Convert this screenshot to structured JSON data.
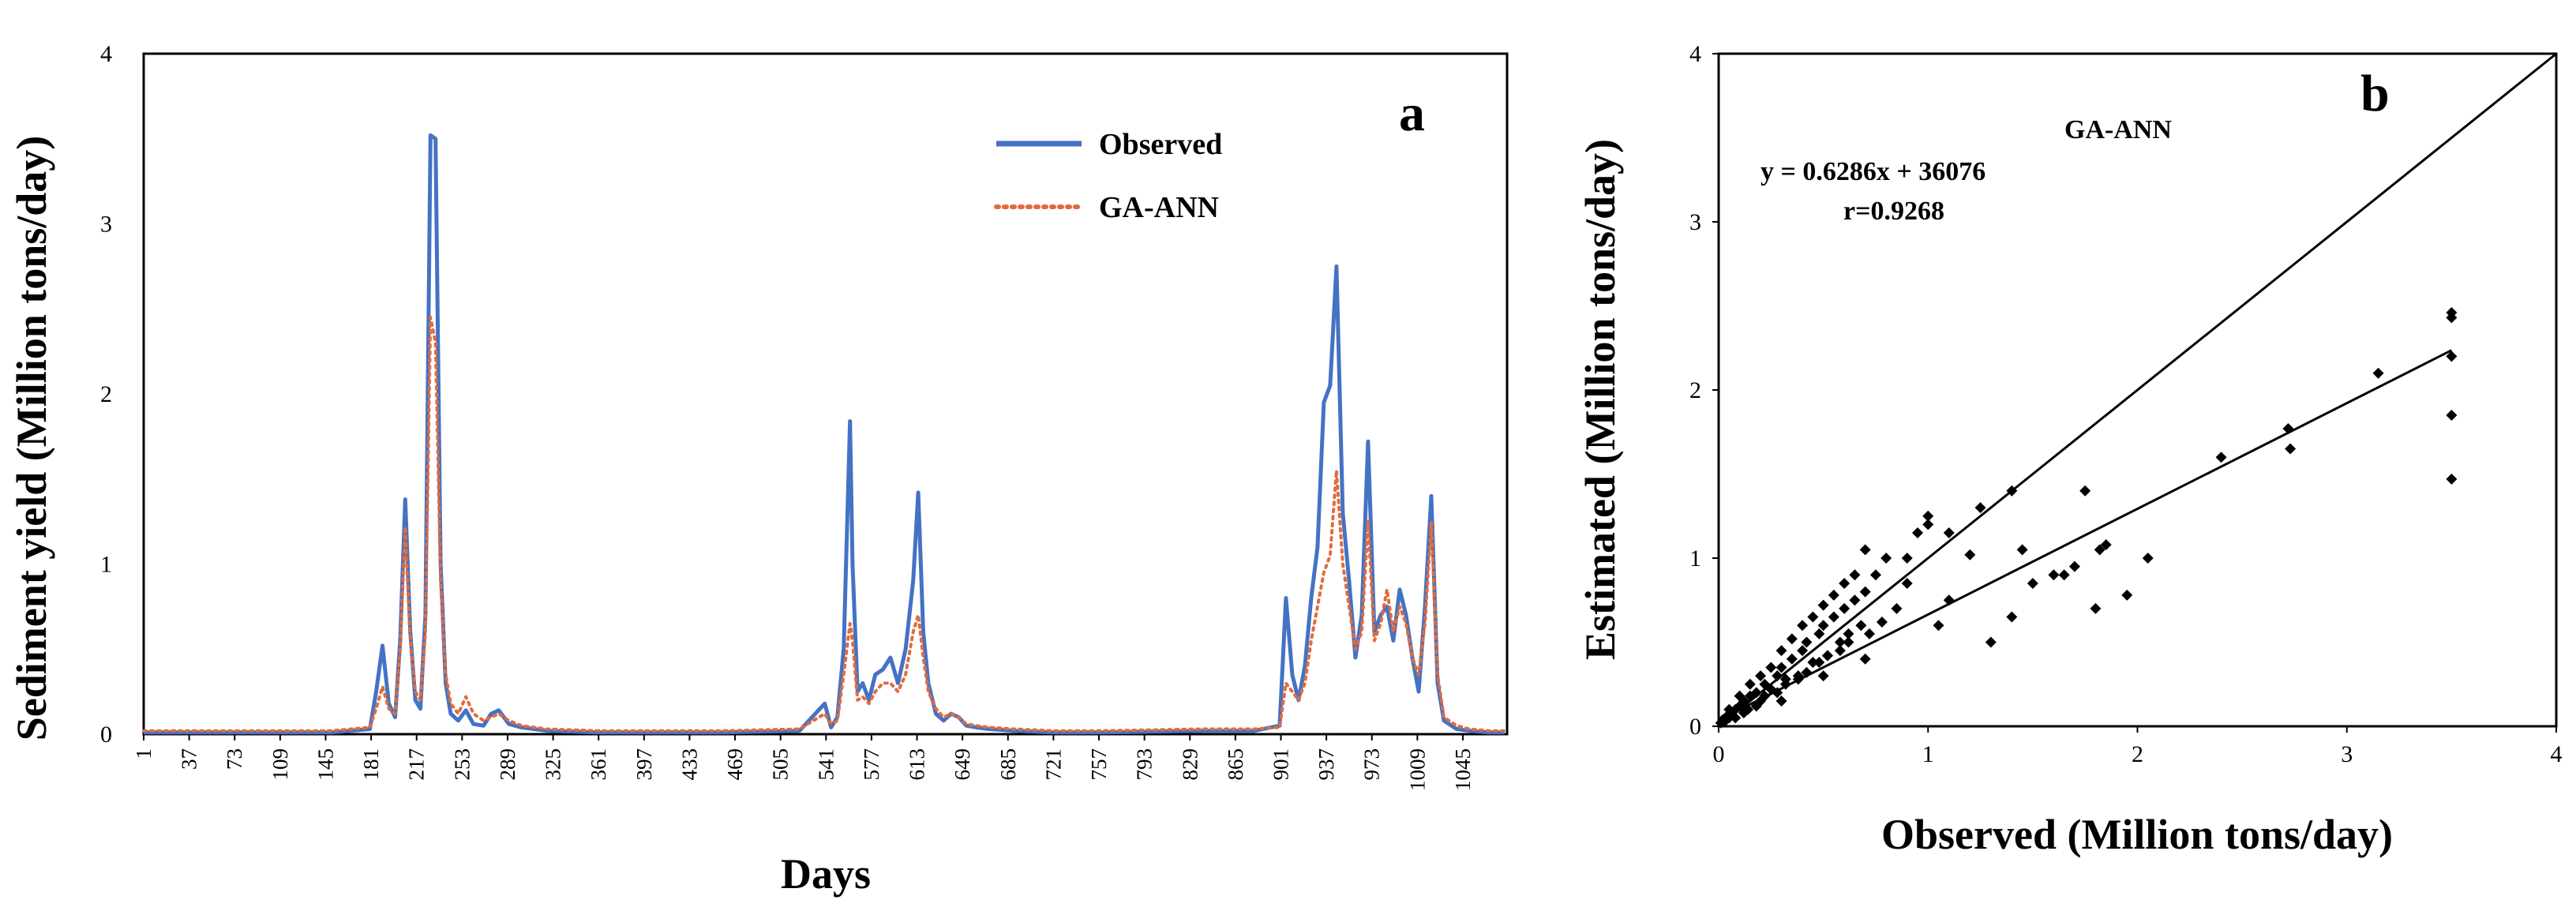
{
  "chart_data": [
    {
      "type": "line",
      "panel": "a",
      "xlabel": "Days",
      "ylabel": "Sediment yield (Million tons/day)",
      "ylim": [
        0,
        4
      ],
      "xlim": [
        1,
        1080
      ],
      "yticks": [
        0,
        1,
        2,
        3,
        4
      ],
      "xticks": [
        1,
        37,
        73,
        109,
        145,
        181,
        217,
        253,
        289,
        325,
        361,
        397,
        433,
        469,
        505,
        541,
        577,
        613,
        649,
        685,
        721,
        757,
        793,
        829,
        865,
        901,
        937,
        973,
        1009,
        1045
      ],
      "legend": [
        "Observed",
        "GA-ANN"
      ],
      "series": [
        {
          "name": "Observed",
          "color": "#4472c4",
          "style": "solid",
          "x": [
            1,
            150,
            180,
            185,
            190,
            195,
            200,
            204,
            208,
            212,
            216,
            220,
            224,
            228,
            232,
            236,
            240,
            244,
            250,
            256,
            262,
            270,
            276,
            282,
            290,
            300,
            320,
            360,
            460,
            520,
            540,
            545,
            550,
            555,
            560,
            562,
            566,
            570,
            575,
            580,
            586,
            592,
            598,
            604,
            610,
            614,
            618,
            622,
            628,
            634,
            640,
            646,
            652,
            660,
            670,
            690,
            720,
            760,
            840,
            880,
            900,
            905,
            910,
            915,
            920,
            925,
            930,
            935,
            940,
            945,
            950,
            955,
            960,
            965,
            970,
            975,
            980,
            985,
            990,
            995,
            1000,
            1005,
            1010,
            1015,
            1020,
            1025,
            1030,
            1040,
            1050,
            1065,
            1078
          ],
          "y": [
            0.01,
            0.01,
            0.03,
            0.25,
            0.52,
            0.18,
            0.1,
            0.55,
            1.38,
            0.6,
            0.2,
            0.15,
            0.7,
            3.52,
            3.5,
            1.0,
            0.3,
            0.12,
            0.08,
            0.14,
            0.06,
            0.05,
            0.12,
            0.14,
            0.06,
            0.04,
            0.02,
            0.01,
            0.01,
            0.02,
            0.18,
            0.04,
            0.1,
            0.5,
            1.84,
            1.0,
            0.25,
            0.3,
            0.2,
            0.35,
            0.38,
            0.45,
            0.3,
            0.5,
            0.9,
            1.42,
            0.6,
            0.3,
            0.12,
            0.08,
            0.12,
            0.1,
            0.05,
            0.04,
            0.03,
            0.02,
            0.01,
            0.01,
            0.02,
            0.02,
            0.05,
            0.8,
            0.35,
            0.2,
            0.4,
            0.8,
            1.1,
            1.95,
            2.05,
            2.75,
            1.3,
            0.9,
            0.45,
            0.7,
            1.72,
            0.6,
            0.7,
            0.75,
            0.55,
            0.85,
            0.7,
            0.45,
            0.25,
            0.75,
            1.4,
            0.3,
            0.08,
            0.03,
            0.02,
            0.01,
            0.01
          ]
        },
        {
          "name": "GA-ANN",
          "color": "#e26b3c",
          "style": "dotted",
          "x": [
            1,
            150,
            180,
            185,
            190,
            195,
            200,
            204,
            208,
            212,
            216,
            220,
            224,
            228,
            232,
            236,
            240,
            244,
            250,
            256,
            262,
            270,
            276,
            282,
            290,
            300,
            320,
            360,
            460,
            520,
            540,
            545,
            550,
            555,
            560,
            562,
            566,
            570,
            575,
            580,
            586,
            592,
            598,
            604,
            610,
            614,
            618,
            622,
            628,
            634,
            640,
            646,
            652,
            660,
            670,
            690,
            720,
            760,
            840,
            880,
            900,
            905,
            910,
            915,
            920,
            925,
            930,
            935,
            940,
            945,
            950,
            955,
            960,
            965,
            970,
            975,
            980,
            985,
            990,
            995,
            1000,
            1005,
            1010,
            1015,
            1020,
            1025,
            1030,
            1040,
            1050,
            1065,
            1078
          ],
          "y": [
            0.02,
            0.02,
            0.04,
            0.15,
            0.28,
            0.15,
            0.12,
            0.5,
            1.22,
            0.55,
            0.25,
            0.2,
            0.6,
            2.45,
            2.3,
            0.9,
            0.35,
            0.18,
            0.12,
            0.22,
            0.12,
            0.08,
            0.1,
            0.12,
            0.08,
            0.05,
            0.03,
            0.02,
            0.02,
            0.03,
            0.12,
            0.06,
            0.08,
            0.35,
            0.65,
            0.55,
            0.2,
            0.22,
            0.18,
            0.25,
            0.3,
            0.3,
            0.25,
            0.35,
            0.6,
            0.7,
            0.45,
            0.25,
            0.15,
            0.1,
            0.12,
            0.1,
            0.06,
            0.05,
            0.04,
            0.03,
            0.02,
            0.02,
            0.03,
            0.03,
            0.04,
            0.3,
            0.25,
            0.2,
            0.3,
            0.55,
            0.75,
            0.95,
            1.05,
            1.55,
            1.0,
            0.75,
            0.5,
            0.6,
            1.25,
            0.55,
            0.65,
            0.85,
            0.6,
            0.75,
            0.65,
            0.45,
            0.35,
            0.65,
            1.25,
            0.35,
            0.1,
            0.05,
            0.03,
            0.02,
            0.02
          ]
        }
      ]
    },
    {
      "type": "scatter",
      "panel": "b",
      "xlabel": "Observed (Million tons/day)",
      "ylabel": "Estimated (Million tons/day)",
      "xlim": [
        0,
        4
      ],
      "ylim": [
        0,
        4
      ],
      "xticks": [
        0,
        1,
        2,
        3,
        4
      ],
      "yticks": [
        0,
        1,
        2,
        3,
        4
      ],
      "model_label": "GA-ANN",
      "equation": "y = 0.6286x + 36076",
      "r_label": "r=0.9268",
      "fit_line": {
        "slope": 0.6286,
        "intercept": 0.036
      },
      "reference_line": {
        "slope": 1,
        "intercept": 0
      },
      "points": {
        "x": [
          0.01,
          0.02,
          0.03,
          0.04,
          0.05,
          0.06,
          0.08,
          0.1,
          0.12,
          0.14,
          0.15,
          0.18,
          0.2,
          0.22,
          0.25,
          0.28,
          0.3,
          0.32,
          0.35,
          0.38,
          0.4,
          0.42,
          0.45,
          0.48,
          0.5,
          0.52,
          0.55,
          0.58,
          0.6,
          0.62,
          0.65,
          0.68,
          0.7,
          0.72,
          0.75,
          0.78,
          0.8,
          0.85,
          0.9,
          0.95,
          1.0,
          1.05,
          1.1,
          1.2,
          1.3,
          1.4,
          1.45,
          1.5,
          1.6,
          1.7,
          1.8,
          1.85,
          1.95,
          2.05,
          2.4,
          2.72,
          2.73,
          3.15,
          3.5,
          3.5,
          3.5,
          3.5,
          3.5,
          0.05,
          0.1,
          0.15,
          0.2,
          0.25,
          0.3,
          0.35,
          0.4,
          0.45,
          0.5,
          0.55,
          0.6,
          0.65,
          0.7,
          0.08,
          0.12,
          0.18,
          0.22,
          0.28,
          0.32,
          0.38,
          0.42,
          0.48,
          0.52,
          0.58,
          0.62,
          0.9,
          1.0,
          1.1,
          1.25,
          1.4,
          1.65,
          1.75,
          1.82,
          0.3,
          0.5,
          0.7
        ],
        "y": [
          0.02,
          0.04,
          0.03,
          0.06,
          0.05,
          0.08,
          0.1,
          0.12,
          0.15,
          0.1,
          0.18,
          0.2,
          0.15,
          0.25,
          0.22,
          0.3,
          0.35,
          0.28,
          0.4,
          0.3,
          0.45,
          0.5,
          0.38,
          0.55,
          0.6,
          0.42,
          0.65,
          0.5,
          0.7,
          0.55,
          0.75,
          0.6,
          0.8,
          0.55,
          0.9,
          0.62,
          1.0,
          0.7,
          0.85,
          1.15,
          1.25,
          0.6,
          0.75,
          1.02,
          0.5,
          0.65,
          1.05,
          0.85,
          0.9,
          0.95,
          0.7,
          1.08,
          0.78,
          1.0,
          1.6,
          1.77,
          1.65,
          2.1,
          2.46,
          2.43,
          2.2,
          1.85,
          1.47,
          0.1,
          0.18,
          0.25,
          0.3,
          0.35,
          0.45,
          0.52,
          0.6,
          0.65,
          0.72,
          0.78,
          0.85,
          0.9,
          1.05,
          0.05,
          0.08,
          0.12,
          0.18,
          0.2,
          0.25,
          0.28,
          0.32,
          0.38,
          0.42,
          0.45,
          0.5,
          1.0,
          1.2,
          1.15,
          1.3,
          1.4,
          0.9,
          1.4,
          1.05,
          0.15,
          0.3,
          0.4
        ]
      }
    }
  ]
}
